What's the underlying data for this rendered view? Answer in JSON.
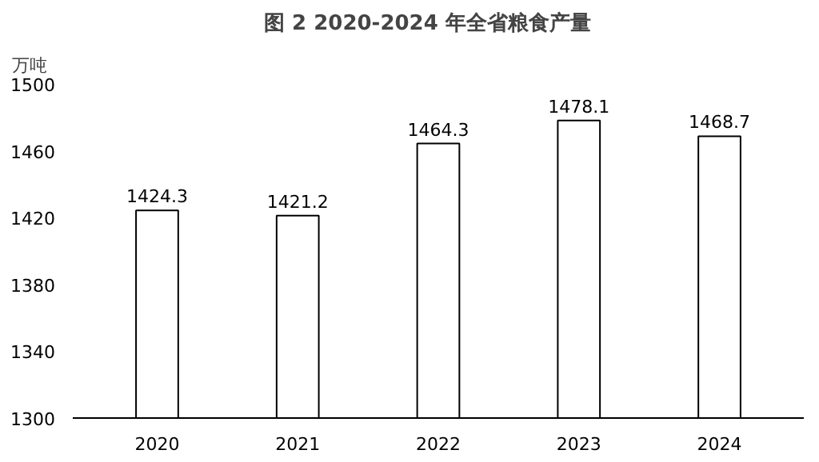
{
  "chart_data": {
    "type": "bar",
    "title": "图 2    2020-2024 年全省粮食产量",
    "ylabel": "万吨",
    "categories": [
      "2020",
      "2021",
      "2022",
      "2023",
      "2024"
    ],
    "values": [
      1424.3,
      1421.2,
      1464.3,
      1478.1,
      1468.7
    ],
    "color": "#ffffff",
    "ylim": [
      1300,
      1500
    ],
    "yticks": [
      1300,
      1340,
      1380,
      1420,
      1460,
      1500
    ],
    "data_labels": true,
    "grid": false
  }
}
